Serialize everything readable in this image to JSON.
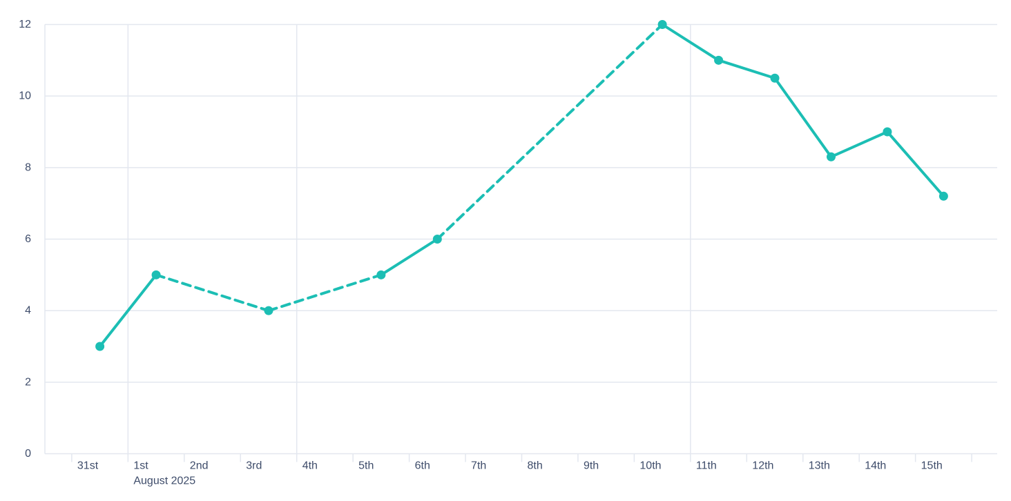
{
  "chart_data": {
    "type": "line",
    "title": "",
    "xlabel": "",
    "ylabel": "",
    "categories": [
      "31st",
      "1st",
      "2nd",
      "3rd",
      "4th",
      "5th",
      "6th",
      "7th",
      "8th",
      "9th",
      "10th",
      "11th",
      "12th",
      "13th",
      "14th",
      "15th"
    ],
    "x_axis_secondary_label": "August 2025",
    "x_axis_secondary_label_under": "1st",
    "series": [
      {
        "name": "main-series",
        "values": [
          3,
          5,
          null,
          4,
          null,
          5,
          6,
          null,
          null,
          null,
          12,
          11,
          10.5,
          8.3,
          9,
          7.2
        ],
        "color": "#1CBEB4",
        "marker": "circle",
        "missing_data_rendering": "dashed-interpolated-segments"
      }
    ],
    "ylim": [
      0,
      12
    ],
    "y_ticks": [
      0,
      2,
      4,
      6,
      8,
      10,
      12
    ],
    "grid": true,
    "legend_position": "none",
    "vertical_gridlines_before_categories": [
      "1st",
      "4th",
      "11th"
    ],
    "colors": {
      "line": "#1CBEB4",
      "grid": "#E3E7EF",
      "axis_text": "#3E4C6A",
      "background": "#FFFFFF"
    }
  }
}
